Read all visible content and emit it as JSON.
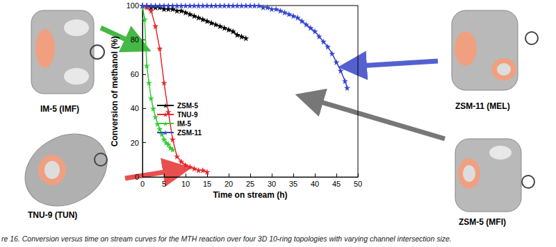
{
  "chart_data": {
    "type": "line",
    "x_label": "Time on stream (h)",
    "y_label": "Conversion of methanol (%)",
    "xlim": [
      0,
      50
    ],
    "xticks": [
      0,
      5,
      10,
      15,
      20,
      25,
      30,
      35,
      40,
      45,
      50
    ],
    "ylim": [
      0,
      100
    ],
    "yticks": [
      0,
      20,
      40,
      60,
      80,
      100
    ],
    "grid": false,
    "legend": "upper left",
    "marker": "star",
    "series": [
      {
        "name": "ZSM-5",
        "color": "#000000",
        "x": [
          0,
          1,
          2,
          3,
          4,
          5,
          6,
          7,
          8,
          9,
          10,
          11,
          12,
          13,
          14,
          15,
          16,
          17,
          18,
          19,
          20,
          21,
          22,
          23,
          24
        ],
        "values": [
          100,
          100,
          99,
          99,
          99,
          98,
          98,
          98,
          97,
          97,
          96,
          95,
          94,
          93,
          92,
          91,
          90,
          89,
          88,
          87,
          86,
          85,
          83,
          82,
          81
        ]
      },
      {
        "name": "TNU-9",
        "color": "#e8262a",
        "x": [
          0,
          1,
          2,
          3,
          4,
          5,
          6,
          7,
          8,
          9,
          10,
          11,
          12,
          13,
          14,
          15
        ],
        "values": [
          100,
          99,
          97,
          88,
          75,
          55,
          38,
          22,
          12,
          9,
          7,
          6,
          5,
          4,
          4,
          3
        ]
      },
      {
        "name": "IM-5",
        "color": "#33cc33",
        "x": [
          0,
          0.5,
          1,
          1.5,
          2,
          2.5,
          3,
          3.5,
          4,
          4.5,
          5,
          5.5,
          6,
          6.5,
          7
        ],
        "values": [
          100,
          92,
          65,
          55,
          46,
          40,
          35,
          31,
          28,
          25,
          22,
          20,
          19,
          17,
          16
        ]
      },
      {
        "name": "ZSM-11",
        "color": "#3344cc",
        "x": [
          0,
          1,
          2,
          3,
          4,
          5,
          6,
          7,
          8,
          9,
          10,
          11,
          12,
          13,
          14,
          15,
          16,
          17,
          18,
          19,
          20,
          21,
          22,
          23,
          24,
          25,
          26,
          27,
          28,
          29,
          30,
          31,
          32,
          33,
          34,
          35,
          36,
          37,
          38,
          39,
          40,
          41,
          42,
          43,
          44,
          45,
          46,
          47,
          47.5
        ],
        "values": [
          100,
          100,
          100,
          100,
          100,
          100,
          100,
          100,
          100,
          100,
          100,
          100,
          100,
          100,
          100,
          100,
          100,
          100,
          100,
          100,
          100,
          100,
          100,
          100,
          100,
          100,
          100,
          100,
          99,
          99,
          98,
          98,
          97,
          96,
          95,
          94,
          93,
          91,
          89,
          87,
          85,
          82,
          79,
          76,
          72,
          67,
          62,
          56,
          52
        ]
      }
    ],
    "annotations": [
      "IM-5 (IMF)",
      "TNU-9 (TUN)",
      "ZSM-11 (MEL)",
      "ZSM-5 (MFI)"
    ],
    "caption": "re 16. Conversion versus time on stream curves for the MTH reaction over four 3D 10-ring topologies with varying channel intersection size."
  }
}
